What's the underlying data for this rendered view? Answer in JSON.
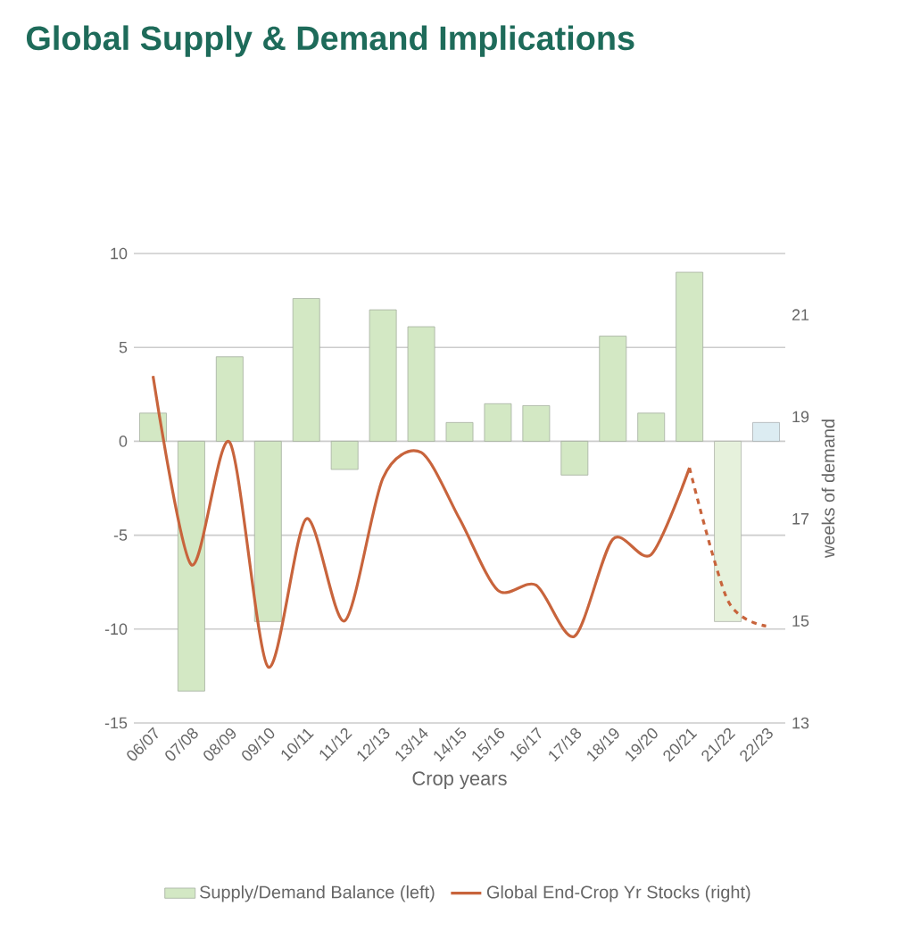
{
  "chart_data": {
    "type": "bar",
    "title": "Global Supply & Demand Implications",
    "xlabel": "Crop years",
    "y2label": "weeks of demand",
    "categories": [
      "06/07",
      "07/08",
      "08/09",
      "09/10",
      "10/11",
      "11/12",
      "12/13",
      "13/14",
      "14/15",
      "15/16",
      "16/17",
      "17/18",
      "18/19",
      "19/20",
      "20/21",
      "21/22",
      "22/23"
    ],
    "series": [
      {
        "name": "Supply/Demand Balance (left)",
        "color": "#d3e8c4",
        "colors": [
          "#d3e8c4",
          "#d3e8c4",
          "#d3e8c4",
          "#d3e8c4",
          "#d3e8c4",
          "#d3e8c4",
          "#d3e8c4",
          "#d3e8c4",
          "#d3e8c4",
          "#d3e8c4",
          "#d3e8c4",
          "#d3e8c4",
          "#d3e8c4",
          "#d3e8c4",
          "#d3e8c4",
          "#e6f1dc",
          "#dcecf2"
        ],
        "values": [
          1.5,
          -13.3,
          4.5,
          -9.6,
          7.6,
          -1.5,
          7.0,
          6.1,
          1.0,
          2.0,
          1.9,
          -1.8,
          5.6,
          1.5,
          9.0,
          -9.6,
          1.0
        ]
      },
      {
        "name": "Global End-Crop Yr Stocks (right)",
        "type": "line",
        "axis": "y2",
        "color": "#c8643c",
        "line_style": "solid",
        "values": [
          19.8,
          16.1,
          18.5,
          14.1,
          17.0,
          15.0,
          17.8,
          18.3,
          17.0,
          15.6,
          15.7,
          14.7,
          16.6,
          16.3,
          18.0,
          null,
          null
        ]
      },
      {
        "type": "line",
        "axis": "y2",
        "color": "#c8643c",
        "line_style": "dashed",
        "values": [
          null,
          null,
          null,
          null,
          null,
          null,
          null,
          null,
          null,
          null,
          null,
          null,
          null,
          null,
          18.0,
          15.4,
          14.9
        ]
      }
    ],
    "ylim": [
      -15,
      10
    ],
    "yticks": [
      -15,
      -10,
      -5,
      0,
      5,
      10
    ],
    "y2lim": [
      13,
      22.2
    ],
    "y2ticks": [
      13,
      15,
      17,
      19,
      21
    ],
    "grid": "y",
    "legend": "bottom"
  }
}
